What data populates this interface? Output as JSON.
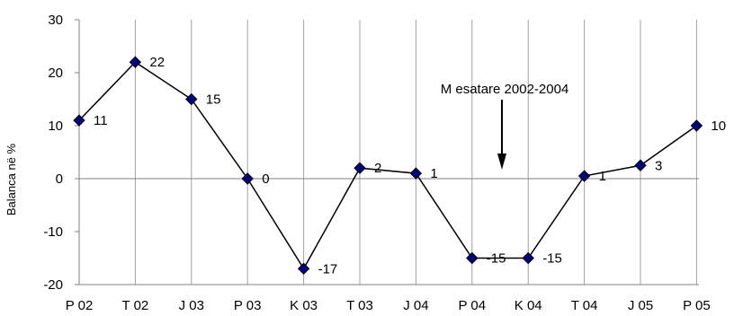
{
  "chart_data": {
    "type": "line",
    "ylabel": "Balanca në %",
    "xlabel": "",
    "title": "",
    "categories": [
      "P 02",
      "T 02",
      "J 03",
      "P 03",
      "K 03",
      "T 03",
      "J 04",
      "P 04",
      "K 04",
      "T 04",
      "J 05",
      "P 05"
    ],
    "values": [
      11,
      22,
      15,
      0,
      -17,
      2,
      1,
      -15,
      -15,
      0.5,
      2.5,
      10
    ],
    "data_labels": [
      "11",
      "22",
      "15",
      "0",
      "-17",
      "2",
      "1",
      "-15",
      "-15",
      "1",
      "3",
      "10"
    ],
    "ylim": [
      -20,
      30
    ],
    "yticks": [
      30,
      20,
      10,
      0,
      -10,
      -20
    ],
    "grid": "vertical",
    "annotation": "M esatare 2002-2004",
    "line_color": "#000000",
    "marker_color": "#000080"
  }
}
